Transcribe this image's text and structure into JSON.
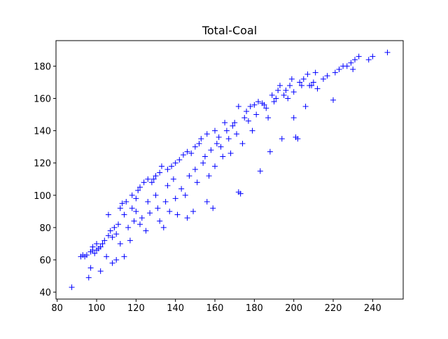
{
  "chart_data": {
    "type": "scatter",
    "title": "Total-Coal",
    "color": "blue",
    "marker": "+",
    "xlim": [
      79.4,
      255.5
    ],
    "ylim": [
      35.7,
      195.8
    ],
    "xticks": [
      80,
      100,
      120,
      140,
      160,
      180,
      200,
      220,
      240
    ],
    "yticks": [
      40,
      60,
      80,
      100,
      120,
      140,
      160,
      180
    ],
    "x": [
      87.4,
      92,
      93,
      94,
      95,
      96,
      97,
      97,
      98,
      98,
      99,
      100,
      100,
      101,
      102,
      102,
      103,
      104,
      105,
      106,
      106,
      107,
      108,
      108,
      109,
      110,
      110,
      111,
      112,
      112,
      113,
      114,
      114,
      115,
      116,
      117,
      118,
      118,
      119,
      120,
      120,
      121,
      122,
      122,
      123,
      124,
      125,
      126,
      126,
      127,
      128,
      129,
      130,
      130,
      131,
      132,
      132,
      133,
      134,
      135,
      136,
      136,
      137,
      138,
      139,
      140,
      140,
      141,
      142,
      143,
      144,
      145,
      146,
      146,
      147,
      148,
      149,
      150,
      150,
      151,
      152,
      153,
      154,
      155,
      156,
      156,
      157,
      158,
      159,
      160,
      160,
      161,
      162,
      163,
      164,
      165,
      166,
      167,
      168,
      169,
      170,
      171,
      172,
      172,
      173,
      174,
      175,
      176,
      177,
      178,
      179,
      180,
      181,
      182,
      183,
      184,
      185,
      186,
      187,
      188,
      189,
      190,
      191,
      192,
      193,
      194,
      195,
      196,
      197,
      198,
      199,
      200,
      200,
      201,
      202,
      203,
      204,
      205,
      206,
      207,
      208,
      209,
      210,
      211,
      212,
      215,
      217,
      220,
      221,
      223,
      225,
      227,
      229,
      230,
      231,
      233,
      238,
      240,
      247.5
    ],
    "values": [
      43,
      62,
      63,
      62,
      63,
      49,
      55,
      65,
      66,
      68,
      64,
      66,
      70,
      67,
      68,
      53,
      70,
      72,
      62,
      88,
      75,
      78,
      74,
      58,
      80,
      76,
      60,
      82,
      70,
      92,
      95,
      88,
      62,
      96,
      80,
      72,
      92,
      100,
      84,
      98,
      90,
      103,
      105,
      82,
      86,
      108,
      78,
      110,
      96,
      89,
      108,
      110,
      112,
      100,
      92,
      114,
      84,
      118,
      80,
      96,
      116,
      106,
      90,
      118,
      110,
      120,
      98,
      88,
      122,
      104,
      125,
      100,
      127,
      86,
      112,
      126,
      90,
      130,
      116,
      108,
      132,
      135,
      120,
      124,
      138,
      96,
      112,
      128,
      92,
      140,
      118,
      132,
      136,
      130,
      124,
      145,
      140,
      135,
      126,
      143,
      145,
      138,
      155,
      102,
      101,
      132,
      148,
      152,
      146,
      155,
      140,
      156,
      150,
      158,
      115,
      157,
      156,
      154,
      148,
      127,
      162,
      158,
      160,
      165,
      168,
      135,
      162,
      165,
      160,
      168,
      172,
      164,
      148,
      136,
      135,
      170,
      168,
      172,
      155,
      175,
      168,
      168,
      170,
      176,
      166,
      172,
      174,
      159,
      176,
      178,
      180,
      180,
      182,
      178,
      184,
      186,
      184,
      186,
      188.5
    ]
  }
}
